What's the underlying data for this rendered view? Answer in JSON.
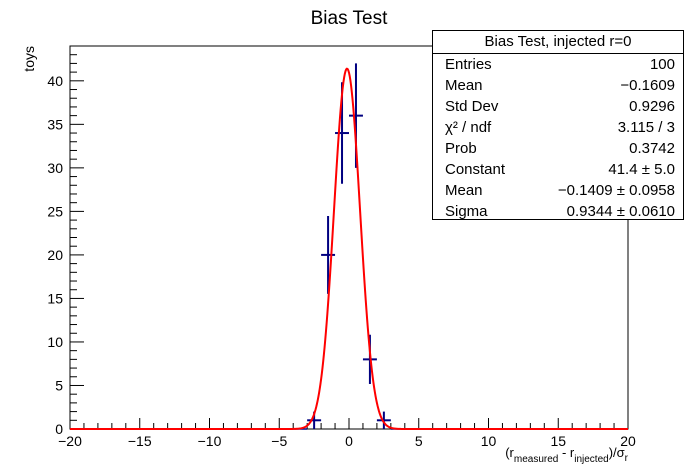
{
  "chart_data": {
    "type": "scatter",
    "title": "Bias Test",
    "ylabel": "toys",
    "xlabel_parts": {
      "open": "(r",
      "sub1": "measured",
      "mid": " - r",
      "sub2": "injected",
      "close": ")/σ",
      "sub3": "r"
    },
    "xlim": [
      -20,
      20
    ],
    "ylim": [
      0,
      44
    ],
    "x_ticks": [
      "−20",
      "−15",
      "−10",
      "−5",
      "0",
      "5",
      "10",
      "15",
      "20"
    ],
    "y_ticks": [
      "0",
      "5",
      "10",
      "15",
      "20",
      "25",
      "30",
      "35",
      "40"
    ],
    "bin_width": 1,
    "series": [
      {
        "kind": "histogram-points",
        "color": "#000080",
        "x": [
          -2.5,
          -1.5,
          -0.5,
          0.5,
          1.5,
          2.5
        ],
        "y": [
          1,
          20,
          34,
          36,
          8,
          1
        ]
      },
      {
        "kind": "gaussian-fit",
        "color": "#ff0000",
        "constant": 41.4,
        "mean": -0.1409,
        "sigma": 0.9344
      }
    ],
    "stats_box": {
      "title": "Bias Test, injected r=0",
      "rows": [
        {
          "label": "Entries",
          "value": "100"
        },
        {
          "label": "Mean",
          "value": "−0.1609"
        },
        {
          "label": "Std Dev",
          "value": "0.9296"
        },
        {
          "label": "χ² / ndf",
          "value": "3.115 / 3"
        },
        {
          "label": "Prob",
          "value": "0.3742"
        },
        {
          "label": "Constant",
          "value": "41.4 ± 5.0"
        },
        {
          "label": "Mean",
          "value": "−0.1409 ± 0.0958"
        },
        {
          "label": "Sigma",
          "value": "0.9344 ± 0.0610"
        }
      ]
    }
  }
}
